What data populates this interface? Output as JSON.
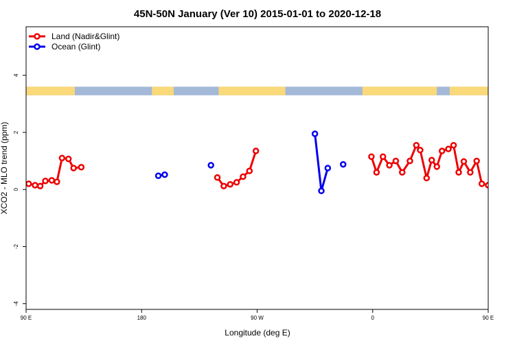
{
  "chart_data": {
    "type": "line",
    "title": "45N-50N January (Ver 10)   2015-01-01 to 2020-12-18",
    "xlabel": "Longitude (deg E)",
    "ylabel": "XCO2 - MLO trend (ppm)",
    "xlim": [
      90,
      450
    ],
    "ylim": [
      -4.2,
      5.7
    ],
    "x_ticks": [
      {
        "value": 90,
        "label": "90 E"
      },
      {
        "value": 180,
        "label": "180"
      },
      {
        "value": 270,
        "label": "90 W"
      },
      {
        "value": 360,
        "label": "0"
      },
      {
        "value": 450,
        "label": "90 E"
      },
      {
        "value": 540,
        "label": "180"
      }
    ],
    "y_ticks": [
      {
        "value": -4,
        "label": "-4"
      },
      {
        "value": -2,
        "label": "-2"
      },
      {
        "value": 0,
        "label": "0"
      },
      {
        "value": 2,
        "label": "2"
      },
      {
        "value": 4,
        "label": "4"
      }
    ],
    "legend_position": "top-left",
    "landmask_band": {
      "y_range": [
        3.3,
        3.6
      ],
      "land_color": "#f9d979",
      "ocean_color": "#a4b8d8"
    },
    "series": [
      {
        "name": "Land (Nadir&Glint)",
        "color": "#ee0000",
        "segments": [
          [
            [
              92,
              0.2
            ],
            [
              97,
              0.15
            ],
            [
              101,
              0.12
            ],
            [
              105,
              0.3
            ],
            [
              110,
              0.32
            ],
            [
              114,
              0.27
            ],
            [
              118,
              1.1
            ],
            [
              123,
              1.07
            ],
            [
              127,
              0.75
            ],
            [
              133,
              0.78
            ]
          ],
          [
            [
              239,
              0.42
            ],
            [
              244,
              0.12
            ],
            [
              249,
              0.18
            ],
            [
              254,
              0.25
            ],
            [
              259,
              0.45
            ],
            [
              264,
              0.65
            ],
            [
              269,
              1.35
            ]
          ],
          [
            [
              359,
              1.15
            ],
            [
              363,
              0.6
            ],
            [
              368,
              1.15
            ],
            [
              373,
              0.85
            ],
            [
              378,
              1.0
            ],
            [
              383,
              0.6
            ],
            [
              389,
              1.0
            ],
            [
              394,
              1.55
            ],
            [
              397,
              1.38
            ],
            [
              402,
              0.4
            ],
            [
              406,
              1.03
            ],
            [
              410,
              0.8
            ],
            [
              414,
              1.35
            ],
            [
              419,
              1.42
            ],
            [
              423,
              1.55
            ],
            [
              427,
              0.6
            ],
            [
              431,
              0.98
            ],
            [
              436,
              0.6
            ],
            [
              441,
              1.0
            ],
            [
              445,
              0.2
            ],
            [
              450,
              0.15
            ],
            [
              455,
              0.12
            ],
            [
              460,
              0.3
            ],
            [
              465,
              0.32
            ],
            [
              470,
              0.27
            ],
            [
              474,
              1.1
            ],
            [
              479,
              1.07
            ],
            [
              484,
              0.75
            ],
            [
              489,
              0.78
            ]
          ]
        ]
      },
      {
        "name": "Ocean (Glint)",
        "color": "#0000ee",
        "segments": [
          [
            [
              193,
              0.48
            ],
            [
              198,
              0.52
            ]
          ],
          [
            [
              234,
              0.85
            ]
          ],
          [
            [
              315,
              1.95
            ],
            [
              320,
              -0.05
            ],
            [
              325,
              0.75
            ]
          ],
          [
            [
              337,
              0.88
            ]
          ]
        ]
      }
    ]
  }
}
